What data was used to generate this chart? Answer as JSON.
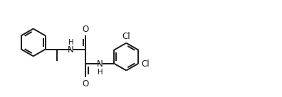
{
  "bg_color": "#ffffff",
  "line_color": "#1a1a1a",
  "line_width": 1.4,
  "font_size": 8.5,
  "fig_width": 3.96,
  "fig_height": 1.37,
  "dpi": 100,
  "xlim": [
    0,
    10
  ],
  "ylim": [
    0,
    3.46
  ]
}
